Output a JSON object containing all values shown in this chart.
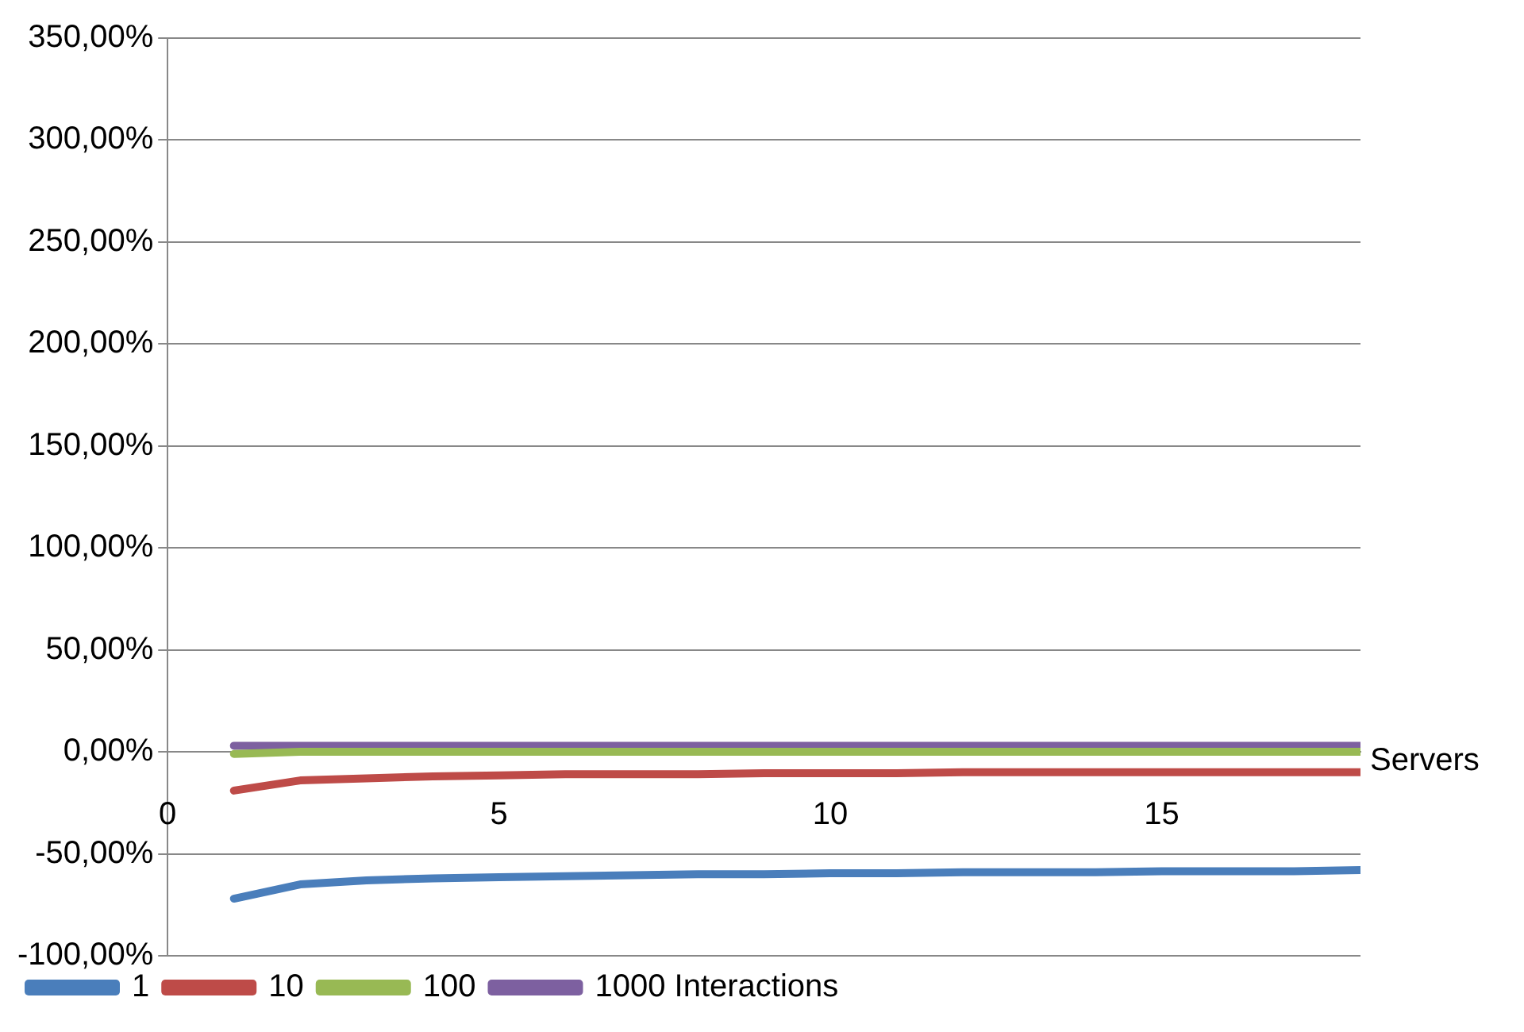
{
  "chart_data": {
    "type": "line",
    "xlabel": "Servers",
    "x": [
      1,
      2,
      3,
      4,
      5,
      6,
      7,
      8,
      9,
      10,
      11,
      12,
      13,
      14,
      15,
      16,
      17,
      18
    ],
    "series": [
      {
        "name": "1",
        "color": "#4a7ebb",
        "values": [
          -72,
          -65,
          -63,
          -62,
          -61.5,
          -61,
          -60.5,
          -60,
          -60,
          -59.5,
          -59.5,
          -59,
          -59,
          -59,
          -58.5,
          -58.5,
          -58.5,
          -58
        ]
      },
      {
        "name": "10",
        "color": "#be4b48",
        "values": [
          -19,
          -14,
          -13,
          -12,
          -11.5,
          -11,
          -11,
          -11,
          -10.5,
          -10.5,
          -10.5,
          -10,
          -10,
          -10,
          -10,
          -10,
          -10,
          -10
        ]
      },
      {
        "name": "100",
        "color": "#98b954",
        "values": [
          -1,
          0,
          0,
          0,
          0,
          0,
          0,
          0,
          0,
          0,
          0,
          0,
          0,
          0,
          0,
          0,
          0,
          0
        ]
      },
      {
        "name": "1000 Interactions",
        "color": "#7d60a0",
        "values": [
          3,
          3,
          3,
          3,
          3,
          3,
          3,
          3,
          3,
          3,
          3,
          3,
          3,
          3,
          3,
          3,
          3,
          3
        ]
      }
    ],
    "xlim": [
      0,
      18
    ],
    "xticks": [
      0,
      5,
      10,
      15
    ],
    "ylim": [
      -100,
      350
    ],
    "yticks": [
      {
        "value": -100,
        "label": "-100,00%"
      },
      {
        "value": -50,
        "label": "-50,00%"
      },
      {
        "value": 0,
        "label": "0,00%"
      },
      {
        "value": 50,
        "label": "50,00%"
      },
      {
        "value": 100,
        "label": "100,00%"
      },
      {
        "value": 150,
        "label": "150,00%"
      },
      {
        "value": 200,
        "label": "200,00%"
      },
      {
        "value": 250,
        "label": "250,00%"
      },
      {
        "value": 300,
        "label": "300,00%"
      },
      {
        "value": 350,
        "label": "350,00%"
      }
    ],
    "grid": "y",
    "legend": "bottom",
    "marker": "none",
    "line_style": "solid"
  }
}
